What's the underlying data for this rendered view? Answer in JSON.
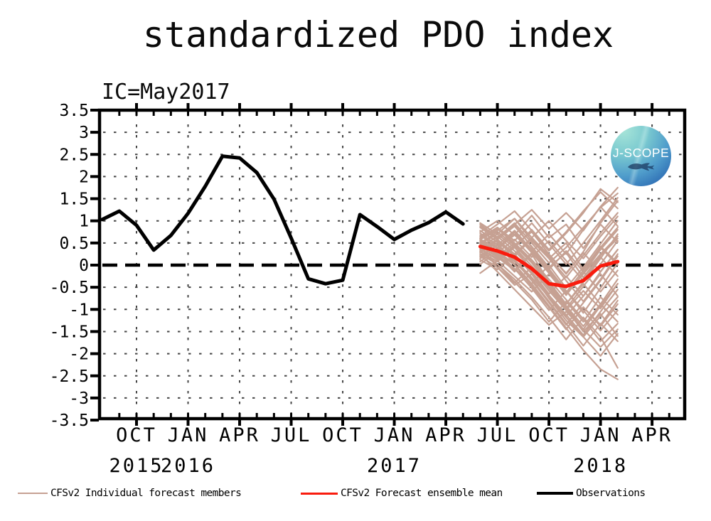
{
  "title": "standardized PDO index",
  "subtitle": "IC=May2017",
  "logo": {
    "text": "J-SCOPE"
  },
  "colors": {
    "members": "#c6a193",
    "mean": "#f91c0e",
    "observations": "#000000",
    "grid": "#454545"
  },
  "legend": [
    {
      "label": "CFSv2 Individual forecast members",
      "color": "#c6a193"
    },
    {
      "label": "CFSv2 Forecast ensemble mean",
      "color": "#f91c0e"
    },
    {
      "label": "Observations",
      "color": "#000000"
    }
  ],
  "chart_data": {
    "type": "line",
    "title": "standardized PDO index",
    "initial_condition": "IC=May2017",
    "x_axis": {
      "start_month": "2015-08",
      "end_month": "2018-06",
      "major_ticks": [
        {
          "month": "2015-10",
          "label": "OCT"
        },
        {
          "month": "2016-01",
          "label": "JAN"
        },
        {
          "month": "2016-04",
          "label": "APR"
        },
        {
          "month": "2016-07",
          "label": "JUL"
        },
        {
          "month": "2016-10",
          "label": "OCT"
        },
        {
          "month": "2017-01",
          "label": "JAN"
        },
        {
          "month": "2017-04",
          "label": "APR"
        },
        {
          "month": "2017-07",
          "label": "JUL"
        },
        {
          "month": "2017-10",
          "label": "OCT"
        },
        {
          "month": "2018-01",
          "label": "JAN"
        },
        {
          "month": "2018-04",
          "label": "APR"
        }
      ],
      "year_labels": [
        {
          "month": "2015-10",
          "label": "2015"
        },
        {
          "month": "2016-01",
          "label": "2016"
        },
        {
          "month": "2017-01",
          "label": "2017"
        },
        {
          "month": "2018-01",
          "label": "2018"
        }
      ]
    },
    "y_axis": {
      "min": -3.5,
      "max": 3.5,
      "tick_step": 0.5,
      "zero_line": "dashed",
      "tick_labels": [
        "3.5",
        "3",
        "2.5",
        "2",
        "1.5",
        "1",
        "0.5",
        "0",
        "-0.5",
        "-1",
        "-1.5",
        "-2",
        "-2.5",
        "-3",
        "-3.5"
      ]
    },
    "series": {
      "observations": {
        "name": "Observations",
        "start_month": "2015-08",
        "monthly_values": [
          1.03,
          1.22,
          0.9,
          0.34,
          0.67,
          1.17,
          1.78,
          2.46,
          2.42,
          2.09,
          1.49,
          0.61,
          -0.31,
          -0.42,
          -0.34,
          1.14,
          0.87,
          0.58,
          0.79,
          0.96,
          1.2,
          0.93
        ]
      },
      "ensemble_mean": {
        "name": "CFSv2 Forecast ensemble mean",
        "start_month": "2017-06",
        "monthly_values": [
          0.42,
          0.32,
          0.18,
          -0.08,
          -0.42,
          -0.48,
          -0.35,
          -0.02,
          0.08
        ]
      },
      "members": {
        "name": "CFSv2 Individual forecast members",
        "start_month": "2017-06",
        "monthly_series": [
          [
            0.62,
            0.85,
            0.45,
            0.75,
            0.25,
            -0.2,
            0.3,
            0.95,
            1.45
          ],
          [
            0.38,
            0.12,
            0.42,
            -0.15,
            -0.65,
            -0.25,
            -0.7,
            -0.15,
            0.35
          ],
          [
            0.95,
            0.7,
            1.05,
            0.55,
            0.15,
            0.5,
            -0.1,
            0.4,
            0.85
          ],
          [
            0.28,
            0.5,
            0.02,
            -0.48,
            -0.95,
            -1.45,
            -0.95,
            -1.35,
            -0.8
          ],
          [
            0.52,
            0.25,
            -0.15,
            0.25,
            -0.38,
            -0.88,
            -0.38,
            0.15,
            0.7
          ],
          [
            0.75,
            1.0,
            0.68,
            1.12,
            0.62,
            0.92,
            0.38,
            0.92,
            0.52
          ],
          [
            0.45,
            0.62,
            0.92,
            0.4,
            -0.08,
            -0.58,
            -1.08,
            -0.52,
            0.05
          ],
          [
            0.32,
            0.02,
            -0.38,
            -0.78,
            -1.28,
            -0.82,
            -1.28,
            -0.72,
            -1.12
          ],
          [
            0.58,
            0.38,
            0.75,
            0.3,
            0.7,
            0.25,
            0.8,
            1.32,
            1.75
          ],
          [
            0.22,
            0.45,
            0.08,
            -0.32,
            -0.82,
            -1.32,
            -1.82,
            -1.32,
            -1.72
          ],
          [
            0.85,
            0.58,
            0.88,
            0.42,
            -0.05,
            0.28,
            -0.28,
            0.22,
            0.6
          ],
          [
            0.4,
            0.65,
            0.32,
            -0.08,
            -0.58,
            -1.02,
            -0.58,
            -0.98,
            -0.42
          ],
          [
            0.02,
            0.3,
            -0.08,
            -0.42,
            0.0,
            -0.52,
            -0.05,
            0.48,
            1.0
          ],
          [
            0.3,
            0.08,
            0.4,
            0.8,
            0.35,
            0.75,
            1.22,
            1.65,
            1.28
          ],
          [
            0.5,
            0.75,
            0.45,
            0.08,
            -0.42,
            -0.92,
            -1.38,
            -0.88,
            -0.32
          ],
          [
            0.68,
            0.4,
            0.1,
            -0.35,
            -0.85,
            -1.35,
            -0.85,
            -0.35,
            0.2
          ],
          [
            0.18,
            0.45,
            0.12,
            -0.28,
            -0.72,
            -1.18,
            -1.62,
            -2.05,
            -1.55
          ],
          [
            0.45,
            0.18,
            -0.12,
            0.28,
            -0.18,
            -0.68,
            -0.18,
            0.35,
            0.8
          ],
          [
            0.6,
            0.85,
            0.55,
            0.95,
            0.48,
            0.02,
            0.5,
            1.0,
            1.52
          ],
          [
            0.35,
            0.55,
            0.22,
            -0.18,
            -0.68,
            -1.12,
            -1.58,
            -1.05,
            -0.55
          ],
          [
            0.55,
            0.32,
            0.02,
            -0.42,
            -0.92,
            -1.42,
            -1.92,
            -2.35,
            -2.58
          ],
          [
            -0.18,
            0.1,
            -0.25,
            -0.6,
            -0.2,
            -0.65,
            -0.2,
            0.25,
            0.65
          ],
          [
            0.72,
            0.45,
            0.78,
            0.35,
            -0.12,
            -0.62,
            -0.12,
            0.4,
            0.0
          ],
          [
            0.25,
            0.02,
            -0.32,
            -0.72,
            -1.18,
            -1.68,
            -1.18,
            -1.62,
            -2.32
          ],
          [
            0.48,
            0.7,
            0.4,
            -0.02,
            -0.48,
            -0.98,
            -0.48,
            0.02,
            0.55
          ],
          [
            0.92,
            0.62,
            0.95,
            0.5,
            0.05,
            0.4,
            0.85,
            1.3,
            1.62
          ],
          [
            0.35,
            0.15,
            0.45,
            0.05,
            -0.45,
            -0.95,
            -1.45,
            -0.92,
            -0.42
          ],
          [
            0.08,
            0.35,
            0.7,
            0.28,
            -0.15,
            -0.62,
            -0.12,
            0.42,
            0.05
          ],
          [
            0.55,
            0.3,
            0.0,
            -0.45,
            -0.95,
            -1.45,
            -0.95,
            -1.38,
            -0.88
          ],
          [
            0.3,
            0.55,
            0.2,
            0.6,
            0.15,
            -0.35,
            -0.82,
            -0.32,
            0.25
          ],
          [
            0.65,
            0.92,
            1.22,
            0.78,
            0.32,
            0.72,
            1.18,
            1.72,
            1.42
          ],
          [
            0.42,
            0.2,
            0.5,
            0.1,
            -0.38,
            -0.88,
            -0.42,
            -0.88,
            -1.28
          ],
          [
            0.12,
            -0.1,
            0.25,
            0.62,
            0.22,
            -0.18,
            0.28,
            -0.15,
            0.35
          ],
          [
            0.45,
            0.22,
            -0.08,
            -0.52,
            -1.02,
            -0.58,
            -1.02,
            -1.48,
            -1.02
          ],
          [
            0.6,
            0.82,
            0.5,
            0.12,
            -0.32,
            -0.78,
            -1.22,
            -1.72,
            -1.32
          ],
          [
            0.88,
            0.6,
            0.92,
            1.25,
            0.82,
            1.18,
            0.78,
            1.32,
            0.88
          ],
          [
            0.5,
            0.28,
            0.58,
            0.18,
            0.55,
            0.1,
            -0.35,
            0.18,
            -0.25
          ],
          [
            0.2,
            -0.05,
            -0.4,
            -0.05,
            -0.52,
            -1.0,
            -1.5,
            -1.1,
            -1.6
          ],
          [
            0.78,
            0.52,
            0.22,
            0.62,
            0.18,
            -0.28,
            0.22,
            0.72,
            1.18
          ],
          [
            0.15,
            0.38,
            0.68,
            0.3,
            -0.1,
            0.32,
            -0.15,
            -0.6,
            -0.12
          ],
          [
            0.58,
            0.78,
            1.05,
            0.62,
            1.0,
            0.55,
            0.15,
            0.65,
            1.1
          ],
          [
            0.35,
            0.58,
            0.25,
            -0.2,
            -0.7,
            -1.15,
            -0.7,
            -0.2,
            -0.7
          ],
          [
            0.25,
            -0.15,
            -0.55,
            -0.95,
            -1.35,
            -1.05,
            -1.45,
            -1.85,
            -1.45
          ],
          [
            0.42,
            -0.05,
            -0.45,
            -0.2,
            -0.75,
            -1.25,
            -1.62,
            -1.15,
            -0.72
          ]
        ]
      }
    }
  }
}
